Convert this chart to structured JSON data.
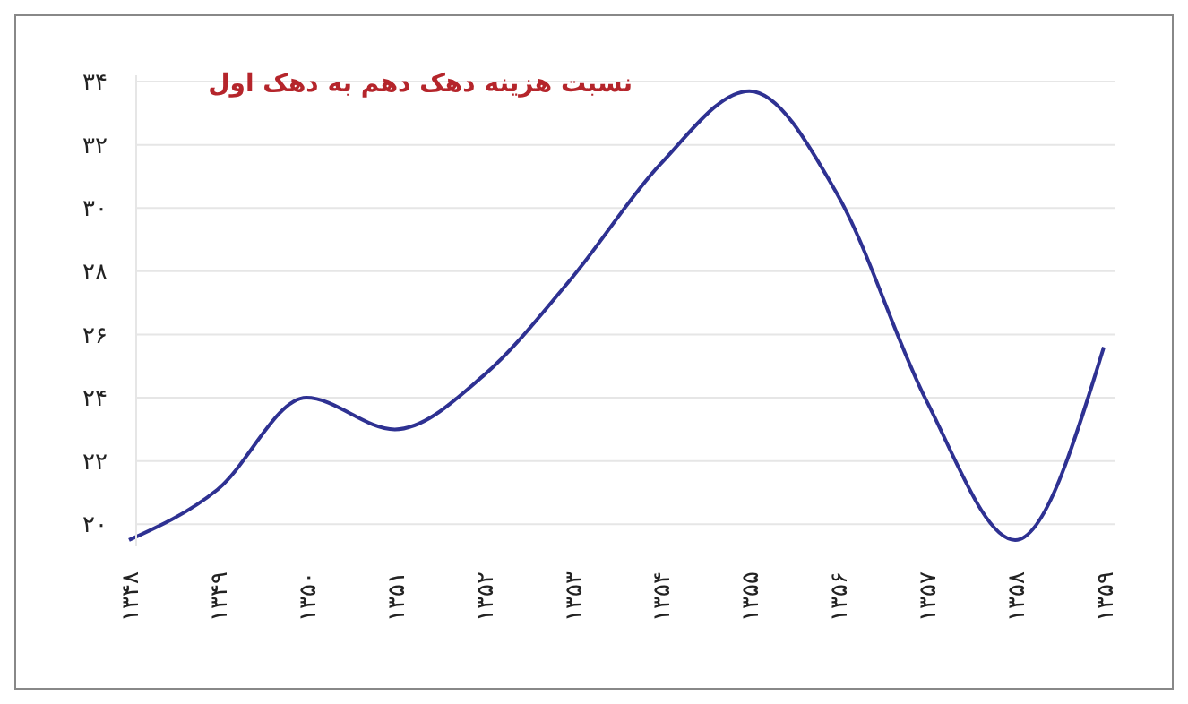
{
  "chart_data": {
    "type": "line",
    "title": "نسبت هزینه دهک دهم به دهک اول",
    "categories": [
      "۱۳۴۸",
      "۱۳۴۹",
      "۱۳۵۰",
      "۱۳۵۱",
      "۱۳۵۲",
      "۱۳۵۳",
      "۱۳۵۴",
      "۱۳۵۵",
      "۱۳۵۶",
      "۱۳۵۷",
      "۱۳۵۸",
      "۱۳۵۹"
    ],
    "series": [
      {
        "color": "#2e3192",
        "values": [
          19.5,
          21.1,
          24.0,
          23.0,
          24.7,
          27.8,
          31.4,
          33.7,
          30.4,
          23.9,
          19.5,
          25.6
        ]
      }
    ],
    "ylim": [
      19.3,
      34.2
    ],
    "yticks": [
      {
        "value": 20,
        "label": "۲۰"
      },
      {
        "value": 22,
        "label": "۲۲"
      },
      {
        "value": 24,
        "label": "۲۴"
      },
      {
        "value": 26,
        "label": "۲۶"
      },
      {
        "value": 28,
        "label": "۲۸"
      },
      {
        "value": 30,
        "label": "۳۰"
      },
      {
        "value": 32,
        "label": "۳۲"
      },
      {
        "value": 34,
        "label": "۳۴"
      }
    ],
    "grid": "y",
    "marker": "none",
    "line_style": "solid"
  }
}
